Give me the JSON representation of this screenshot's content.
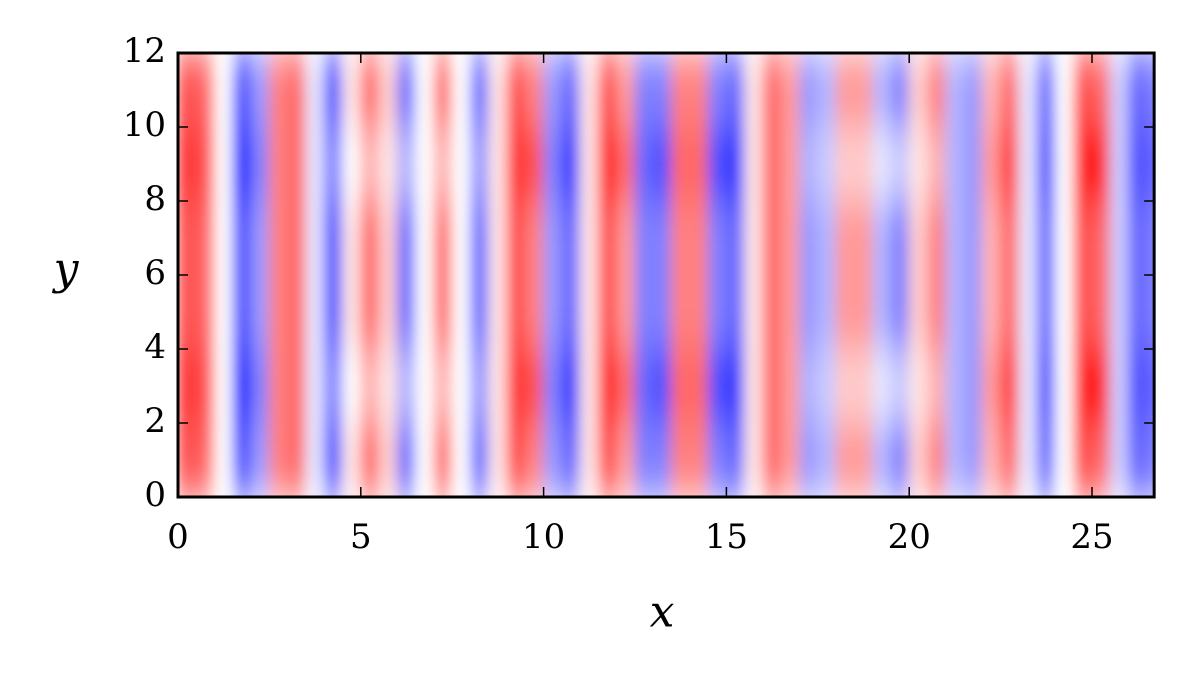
{
  "chart_data": {
    "type": "heatmap",
    "x_label": "x",
    "y_label": "y",
    "colormap": "bwr",
    "zlim": [
      -1,
      1
    ],
    "xlim": [
      0,
      26.7
    ],
    "ylim": [
      0,
      12
    ],
    "xticks": [
      0,
      5,
      10,
      15,
      20,
      25
    ],
    "yticks": [
      0,
      2,
      4,
      6,
      8,
      10,
      12
    ],
    "x": [
      0.25,
      0.75,
      1.25,
      1.75,
      2.25,
      2.75,
      3.25,
      3.75,
      4.25,
      4.75,
      5.25,
      5.75,
      6.25,
      6.75,
      7.25,
      7.75,
      8.25,
      8.75,
      9.25,
      9.75,
      10.25,
      10.75,
      11.25,
      11.75,
      12.25,
      12.75,
      13.25,
      13.75,
      14.25,
      14.75,
      15.25,
      15.75,
      16.25,
      16.75,
      17.25,
      17.75,
      18.25,
      18.75,
      19.25,
      19.75,
      20.25,
      20.75,
      21.25,
      21.75,
      22.25,
      22.75,
      23.25,
      23.75,
      24.25,
      24.75,
      25.25,
      25.75,
      26.25,
      26.75
    ],
    "y": [
      1,
      3,
      5,
      7,
      9,
      11
    ],
    "z": [
      [
        0.7,
        0.6,
        0.0,
        -0.7,
        -0.4,
        0.5,
        0.6,
        -0.1,
        -0.7,
        0.1,
        0.6,
        0.2,
        -0.6,
        0.0,
        0.6,
        0.0,
        -0.6,
        0.1,
        0.7,
        0.5,
        -0.4,
        -0.6,
        0.1,
        0.7,
        0.4,
        -0.5,
        -0.5,
        0.5,
        0.5,
        -0.5,
        -0.6,
        0.1,
        0.6,
        0.4,
        -0.4,
        -0.3,
        0.4,
        0.4,
        -0.3,
        -0.5,
        0.2,
        0.5,
        -0.3,
        -0.4,
        0.3,
        0.6,
        -0.1,
        -0.6,
        0.0,
        0.7,
        0.6,
        -0.2,
        -0.6,
        -0.5
      ],
      [
        0.8,
        0.7,
        0.0,
        -0.9,
        -0.5,
        0.5,
        0.6,
        -0.1,
        -0.5,
        0.0,
        0.3,
        0.1,
        -0.3,
        0.0,
        0.3,
        0.0,
        -0.4,
        0.1,
        0.8,
        0.7,
        -0.5,
        -0.8,
        0.1,
        0.9,
        0.6,
        -0.6,
        -0.7,
        0.6,
        0.6,
        -0.7,
        -0.8,
        0.1,
        0.6,
        0.4,
        -0.3,
        -0.2,
        0.2,
        0.2,
        -0.1,
        -0.2,
        0.1,
        0.3,
        -0.3,
        -0.4,
        0.4,
        0.8,
        -0.1,
        -0.7,
        0.0,
        0.9,
        0.9,
        -0.2,
        -0.7,
        -0.6
      ],
      [
        0.7,
        0.6,
        0.0,
        -0.7,
        -0.4,
        0.5,
        0.6,
        -0.1,
        -0.7,
        0.1,
        0.6,
        0.2,
        -0.6,
        0.0,
        0.6,
        0.0,
        -0.6,
        0.1,
        0.7,
        0.5,
        -0.4,
        -0.6,
        0.1,
        0.7,
        0.4,
        -0.5,
        -0.5,
        0.5,
        0.5,
        -0.5,
        -0.6,
        0.1,
        0.6,
        0.4,
        -0.4,
        -0.3,
        0.4,
        0.4,
        -0.3,
        -0.5,
        0.2,
        0.5,
        -0.3,
        -0.4,
        0.3,
        0.6,
        -0.1,
        -0.6,
        0.0,
        0.7,
        0.6,
        -0.2,
        -0.6,
        -0.5
      ],
      [
        0.7,
        0.6,
        0.0,
        -0.7,
        -0.4,
        0.5,
        0.6,
        -0.1,
        -0.7,
        0.1,
        0.6,
        0.2,
        -0.6,
        0.0,
        0.6,
        0.0,
        -0.6,
        0.1,
        0.7,
        0.5,
        -0.4,
        -0.6,
        0.1,
        0.7,
        0.4,
        -0.5,
        -0.5,
        0.5,
        0.5,
        -0.5,
        -0.6,
        0.1,
        0.6,
        0.4,
        -0.4,
        -0.3,
        0.4,
        0.4,
        -0.3,
        -0.5,
        0.2,
        0.5,
        -0.3,
        -0.4,
        0.3,
        0.6,
        -0.1,
        -0.6,
        0.0,
        0.7,
        0.6,
        -0.2,
        -0.6,
        -0.5
      ],
      [
        0.8,
        0.7,
        0.0,
        -0.9,
        -0.5,
        0.5,
        0.6,
        -0.1,
        -0.5,
        0.0,
        0.3,
        0.1,
        -0.3,
        0.0,
        0.3,
        0.0,
        -0.4,
        0.1,
        0.8,
        0.7,
        -0.5,
        -0.8,
        0.1,
        0.9,
        0.6,
        -0.6,
        -0.7,
        0.6,
        0.6,
        -0.7,
        -0.8,
        0.1,
        0.6,
        0.4,
        -0.3,
        -0.2,
        0.2,
        0.2,
        -0.1,
        -0.2,
        0.1,
        0.3,
        -0.3,
        -0.4,
        0.4,
        0.8,
        -0.1,
        -0.7,
        0.0,
        0.9,
        0.9,
        -0.2,
        -0.7,
        -0.6
      ],
      [
        0.7,
        0.6,
        0.0,
        -0.7,
        -0.4,
        0.5,
        0.6,
        -0.1,
        -0.7,
        0.1,
        0.6,
        0.2,
        -0.6,
        0.0,
        0.6,
        0.0,
        -0.6,
        0.1,
        0.7,
        0.5,
        -0.4,
        -0.6,
        0.1,
        0.7,
        0.4,
        -0.5,
        -0.5,
        0.5,
        0.5,
        -0.5,
        -0.6,
        0.1,
        0.6,
        0.4,
        -0.4,
        -0.3,
        0.4,
        0.4,
        -0.3,
        -0.5,
        0.2,
        0.5,
        -0.3,
        -0.4,
        0.3,
        0.6,
        -0.1,
        -0.6,
        0.0,
        0.7,
        0.6,
        -0.2,
        -0.6,
        -0.5
      ]
    ]
  }
}
